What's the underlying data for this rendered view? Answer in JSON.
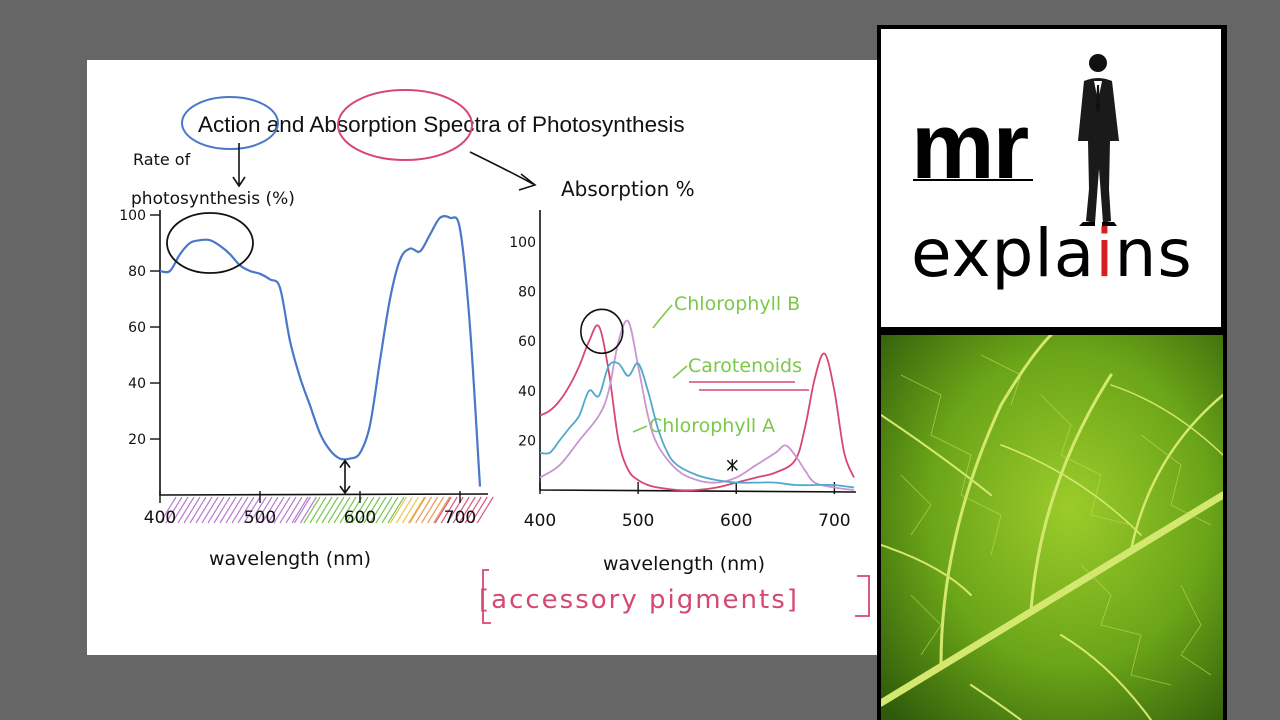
{
  "title": {
    "prefix": "Action",
    "middle": " and ",
    "highlight": "Absorption",
    "suffix": " Spectra of Photosynthesis"
  },
  "colors": {
    "action": "#4a78c8",
    "chlorophyll_a": "#d64870",
    "chlorophyll_b": "#c896d2",
    "carotenoids": "#52a8cc",
    "labels": "#7cc84a",
    "accessory": "#d64870",
    "ink": "#111111"
  },
  "annotations": {
    "accessory": "[accessory pigments]"
  },
  "chart_data": [
    {
      "type": "line",
      "ylabel_line1": "Rate of",
      "ylabel_line2": "photosynthesis (%)",
      "xlabel": "wavelength (nm)",
      "xlim": [
        400,
        720
      ],
      "ylim": [
        0,
        100
      ],
      "xticks": [
        400,
        500,
        600,
        700
      ],
      "xtick_labels": [
        "400",
        "500",
        "600",
        "700"
      ],
      "yticks": [
        20,
        40,
        60,
        80,
        100
      ],
      "ytick_labels": [
        "20",
        "40",
        "60",
        "80",
        "100"
      ],
      "series": [
        {
          "color": "#4a78c8",
          "x": [
            400,
            410,
            420,
            430,
            440,
            450,
            460,
            470,
            480,
            490,
            500,
            510,
            520,
            530,
            540,
            550,
            560,
            570,
            580,
            590,
            600,
            610,
            620,
            630,
            640,
            650,
            660,
            670,
            680,
            690,
            700,
            710,
            720
          ],
          "y": [
            80,
            80,
            86,
            90,
            91,
            91,
            89,
            86,
            82,
            80,
            79,
            77,
            74,
            55,
            42,
            32,
            22,
            16,
            13,
            13,
            15,
            25,
            48,
            70,
            84,
            88,
            87,
            93,
            99,
            99,
            95,
            60,
            3
          ]
        }
      ],
      "spectrum_bands": [
        "violet",
        "blue",
        "green",
        "yellow",
        "orange",
        "red"
      ]
    },
    {
      "type": "line",
      "ylabel": "Absorption %",
      "xlabel": "wavelength (nm)",
      "xlim": [
        400,
        720
      ],
      "ylim": [
        0,
        100
      ],
      "xticks": [
        400,
        500,
        600,
        700
      ],
      "xtick_labels": [
        "400",
        "500",
        "600",
        "700"
      ],
      "yticks": [
        20,
        40,
        60,
        80,
        100
      ],
      "ytick_labels": [
        "20",
        "40",
        "60",
        "80",
        "100"
      ],
      "series": [
        {
          "name": "Chlorophyll A",
          "color": "#d64870",
          "x": [
            400,
            410,
            420,
            430,
            440,
            450,
            460,
            470,
            480,
            490,
            500,
            510,
            520,
            540,
            560,
            580,
            600,
            620,
            640,
            660,
            670,
            680,
            690,
            700,
            710,
            720
          ],
          "y": [
            30,
            32,
            36,
            42,
            50,
            60,
            66,
            48,
            20,
            8,
            4,
            2,
            1,
            0,
            0,
            1,
            3,
            5,
            7,
            12,
            25,
            45,
            55,
            40,
            15,
            5
          ]
        },
        {
          "name": "Chlorophyll B",
          "color": "#c896d2",
          "x": [
            400,
            420,
            440,
            460,
            470,
            480,
            490,
            500,
            510,
            520,
            540,
            560,
            580,
            600,
            620,
            640,
            650,
            660,
            670,
            680,
            700,
            720
          ],
          "y": [
            5,
            10,
            20,
            30,
            40,
            60,
            68,
            50,
            30,
            18,
            8,
            4,
            3,
            5,
            10,
            15,
            18,
            14,
            8,
            3,
            1,
            0
          ]
        },
        {
          "name": "Carotenoids",
          "color": "#52a8cc",
          "x": [
            400,
            410,
            420,
            430,
            440,
            450,
            460,
            470,
            480,
            490,
            500,
            510,
            520,
            530,
            540,
            560,
            580,
            600,
            620,
            640,
            660,
            680,
            700,
            720
          ],
          "y": [
            15,
            15,
            20,
            25,
            30,
            40,
            38,
            50,
            51,
            46,
            51,
            40,
            25,
            15,
            10,
            6,
            4,
            3,
            3,
            3,
            2,
            2,
            2,
            1
          ]
        }
      ]
    }
  ]
}
